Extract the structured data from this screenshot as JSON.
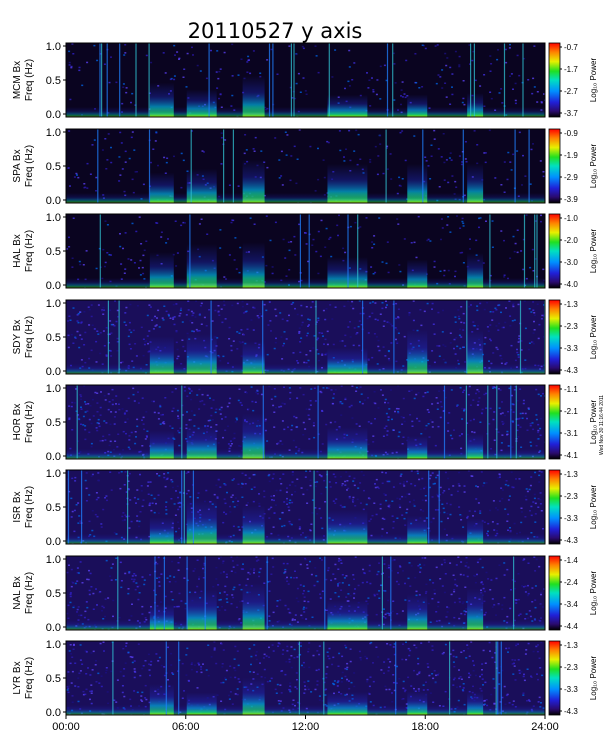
{
  "chart_data": {
    "type": "heatmap",
    "title": "20110527 y axis",
    "x_axis": {
      "range": [
        "00:00",
        "24:00"
      ],
      "ticks": [
        "00:00",
        "06:00",
        "12:00",
        "18:00",
        "24:00"
      ]
    },
    "y_axis": {
      "range": [
        0.0,
        1.0
      ],
      "ticks": [
        "0.0",
        "0.5",
        "1.0"
      ]
    },
    "colorbar_label": "Log₁₀ Power",
    "panels": [
      {
        "station": "MCM Bx",
        "ylabel": "Freq (Hz)",
        "colorbar_ticks": [
          "-0.7",
          "-1.7",
          "-2.7",
          "-3.7"
        ]
      },
      {
        "station": "SPA Bx",
        "ylabel": "Freq (Hz)",
        "colorbar_ticks": [
          "-0.9",
          "-1.9",
          "-2.9",
          "-3.9"
        ]
      },
      {
        "station": "HAL Bx",
        "ylabel": "Freq (Hz)",
        "colorbar_ticks": [
          "-1.0",
          "-2.0",
          "-3.0",
          "-4.0"
        ]
      },
      {
        "station": "SDY Bx",
        "ylabel": "Freq (Hz)",
        "colorbar_ticks": [
          "-1.3",
          "-2.3",
          "-3.3",
          "-4.3"
        ]
      },
      {
        "station": "HOR Bx",
        "ylabel": "Freq (Hz)",
        "colorbar_ticks": [
          "-1.1",
          "-2.1",
          "-3.1",
          "-4.1"
        ]
      },
      {
        "station": "ISR Bx",
        "ylabel": "Freq (Hz)",
        "colorbar_ticks": [
          "-1.3",
          "-2.3",
          "-3.3",
          "-4.3"
        ]
      },
      {
        "station": "NAL Bx",
        "ylabel": "Freq (Hz)",
        "colorbar_ticks": [
          "-1.4",
          "-2.4",
          "-3.4",
          "-4.4"
        ]
      },
      {
        "station": "LYR Bx",
        "ylabel": "Freq (Hz)",
        "colorbar_ticks": [
          "-1.3",
          "-2.3",
          "-3.3",
          "-4.3"
        ]
      }
    ],
    "side_note": "Wed Nov 30 11:16:44 2011"
  }
}
